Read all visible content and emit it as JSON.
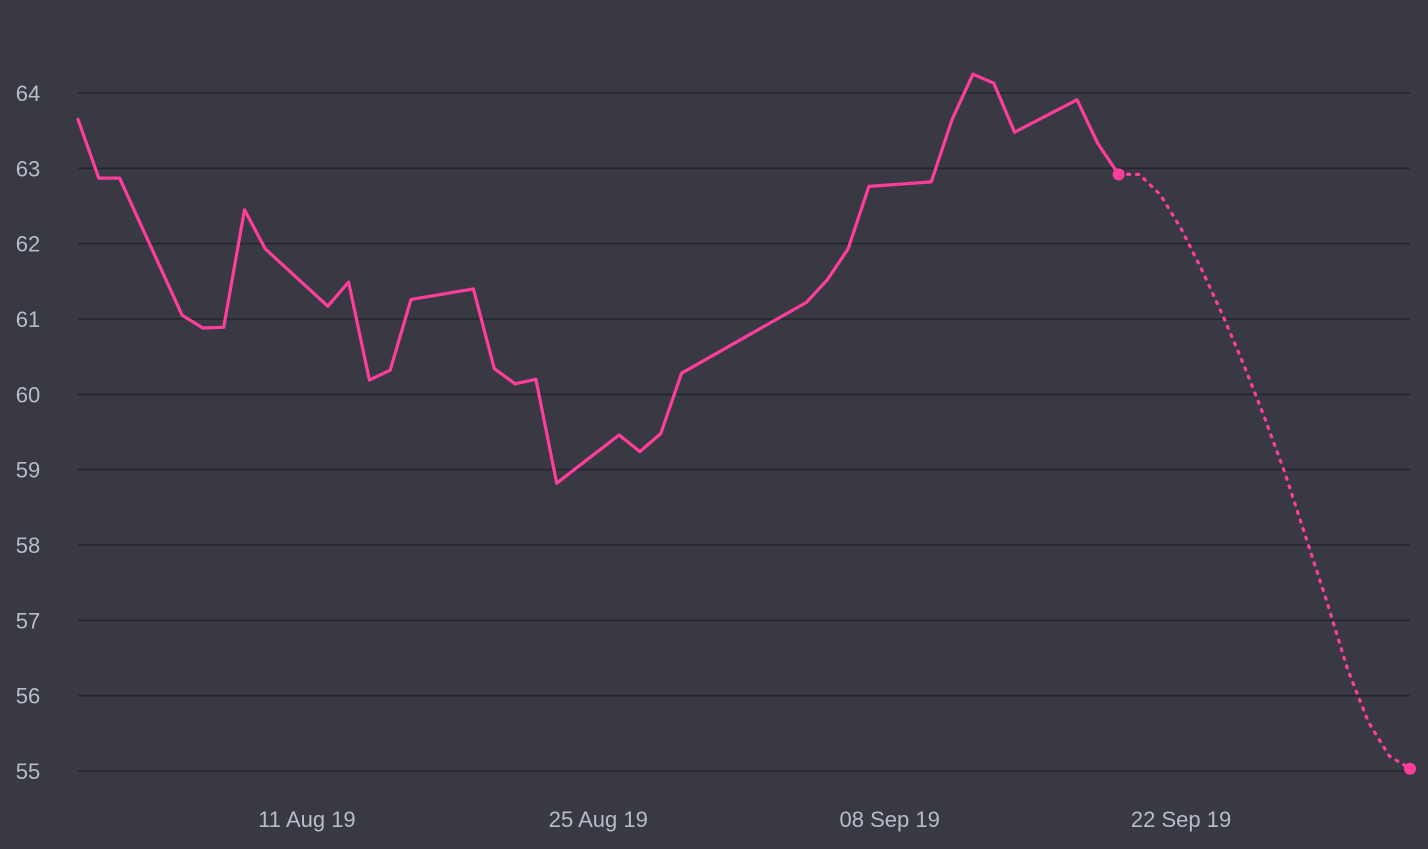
{
  "colors": {
    "background": "#393944",
    "series": "#ff3d9a",
    "grid": "#25252d",
    "tick_text": "#b9bcc8"
  },
  "chart_data": {
    "type": "line",
    "title": "",
    "xlabel": "",
    "ylabel": "",
    "ylim": [
      55,
      64
    ],
    "xlim": [
      "2019-07-31",
      "2019-10-03"
    ],
    "y_ticks": [
      "55",
      "56",
      "57",
      "58",
      "59",
      "60",
      "61",
      "62",
      "63",
      "64"
    ],
    "x_ticks": [
      {
        "date": "2019-08-11",
        "label": "11 Aug 19"
      },
      {
        "date": "2019-08-25",
        "label": "25 Aug 19"
      },
      {
        "date": "2019-09-08",
        "label": "08 Sep 19"
      },
      {
        "date": "2019-09-22",
        "label": "22 Sep 19"
      }
    ],
    "grid": true,
    "series": [
      {
        "style": "solid",
        "points": [
          {
            "x": "2019-07-31",
            "y": 63.65
          },
          {
            "x": "2019-08-01",
            "y": 62.87
          },
          {
            "x": "2019-08-02",
            "y": 62.87
          },
          {
            "x": "2019-08-05",
            "y": 61.05
          },
          {
            "x": "2019-08-06",
            "y": 60.88
          },
          {
            "x": "2019-08-07",
            "y": 60.89
          },
          {
            "x": "2019-08-08",
            "y": 62.45
          },
          {
            "x": "2019-08-09",
            "y": 61.93
          },
          {
            "x": "2019-08-12",
            "y": 61.17
          },
          {
            "x": "2019-08-13",
            "y": 61.49
          },
          {
            "x": "2019-08-14",
            "y": 60.19
          },
          {
            "x": "2019-08-15",
            "y": 60.32
          },
          {
            "x": "2019-08-16",
            "y": 61.26
          },
          {
            "x": "2019-08-19",
            "y": 61.4
          },
          {
            "x": "2019-08-20",
            "y": 60.34
          },
          {
            "x": "2019-08-21",
            "y": 60.14
          },
          {
            "x": "2019-08-22",
            "y": 60.2
          },
          {
            "x": "2019-08-23",
            "y": 58.82
          },
          {
            "x": "2019-08-26",
            "y": 59.46
          },
          {
            "x": "2019-08-27",
            "y": 59.24
          },
          {
            "x": "2019-08-28",
            "y": 59.48
          },
          {
            "x": "2019-08-29",
            "y": 60.28
          },
          {
            "x": "2019-09-04",
            "y": 61.22
          },
          {
            "x": "2019-09-05",
            "y": 61.52
          },
          {
            "x": "2019-09-06",
            "y": 61.93
          },
          {
            "x": "2019-09-07",
            "y": 62.76
          },
          {
            "x": "2019-09-10",
            "y": 62.82
          },
          {
            "x": "2019-09-11",
            "y": 63.65
          },
          {
            "x": "2019-09-12",
            "y": 64.25
          },
          {
            "x": "2019-09-13",
            "y": 64.13
          },
          {
            "x": "2019-09-14",
            "y": 63.48
          },
          {
            "x": "2019-09-17",
            "y": 63.91
          },
          {
            "x": "2019-09-18",
            "y": 63.33
          },
          {
            "x": "2019-09-19",
            "y": 62.92
          }
        ]
      },
      {
        "style": "dotted",
        "points": [
          {
            "x": "2019-09-19",
            "y": 62.92
          },
          {
            "x": "2019-09-20",
            "y": 62.92
          },
          {
            "x": "2019-09-21",
            "y": 62.65
          },
          {
            "x": "2019-09-22",
            "y": 62.2
          },
          {
            "x": "2019-09-23",
            "y": 61.65
          },
          {
            "x": "2019-09-24",
            "y": 61.05
          },
          {
            "x": "2019-09-25",
            "y": 60.4
          },
          {
            "x": "2019-09-26",
            "y": 59.7
          },
          {
            "x": "2019-09-27",
            "y": 58.95
          },
          {
            "x": "2019-09-28",
            "y": 58.1
          },
          {
            "x": "2019-09-29",
            "y": 57.25
          },
          {
            "x": "2019-09-30",
            "y": 56.35
          },
          {
            "x": "2019-10-01",
            "y": 55.65
          },
          {
            "x": "2019-10-02",
            "y": 55.2
          },
          {
            "x": "2019-10-03",
            "y": 55.03
          }
        ]
      }
    ],
    "endpoint_markers": [
      {
        "x": "2019-09-19",
        "y": 62.92
      },
      {
        "x": "2019-10-03",
        "y": 55.03
      }
    ]
  }
}
